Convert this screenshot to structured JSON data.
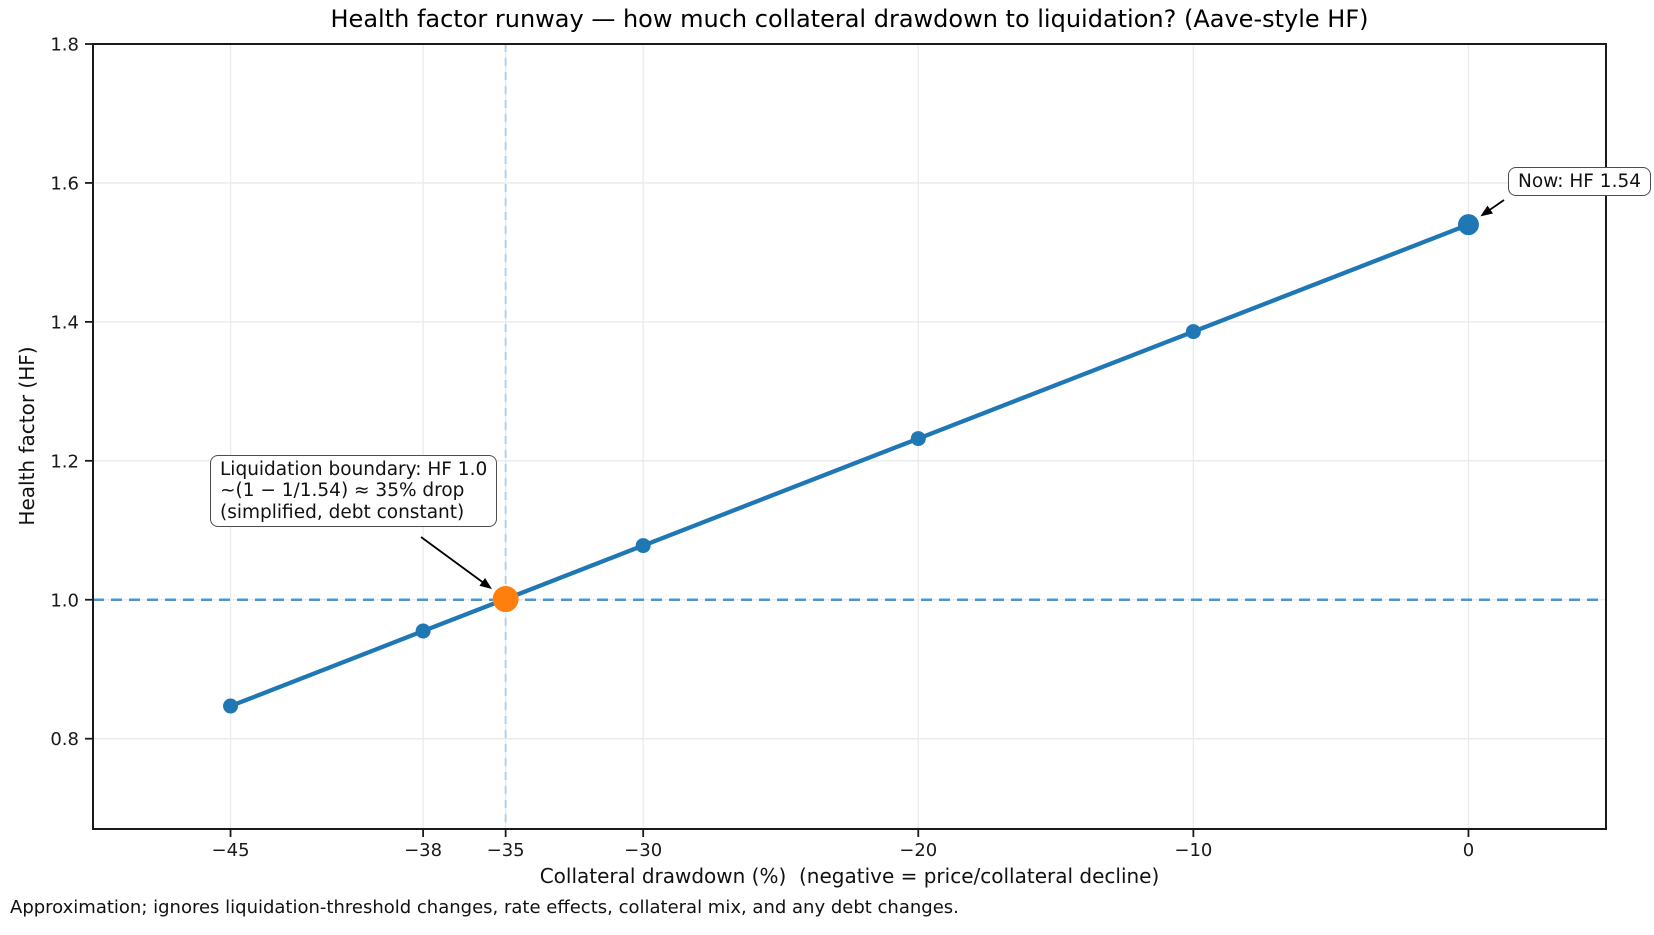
{
  "footer_note": "Approximation; ignores liquidation-threshold changes, rate effects, collateral mix, and any debt changes.",
  "chart_data": {
    "type": "line",
    "title": "Health factor runway — how much collateral drawdown to liquidation? (Aave-style HF)",
    "xlabel": "Collateral drawdown (%)  (negative = price/collateral decline)",
    "ylabel": "Health factor (HF)",
    "x": [
      -45,
      -38,
      -35,
      -30,
      -20,
      -10,
      0
    ],
    "series": [
      {
        "name": "Health factor (HF)",
        "values": [
          0.847,
          0.955,
          1.001,
          1.078,
          1.232,
          1.386,
          1.54
        ]
      }
    ],
    "xtick_labels": [
      "−45",
      "−38",
      "−35",
      "−30",
      "−20",
      "−10",
      "0"
    ],
    "ytick_values": [
      0.8,
      1.0,
      1.2,
      1.4,
      1.6,
      1.8
    ],
    "ytick_labels": [
      "0.8",
      "1.0",
      "1.2",
      "1.4",
      "1.6",
      "1.8"
    ],
    "xlim": [
      -50,
      5
    ],
    "ylim": [
      0.67,
      1.8
    ],
    "grid": true,
    "legend": false,
    "reference_lines": {
      "hline": {
        "y": 1.0,
        "style": "dashed"
      },
      "vline": {
        "x": -35,
        "style": "dashed"
      }
    },
    "points": {
      "now": {
        "x": 0,
        "y": 1.54,
        "size": "large"
      },
      "boundary": {
        "x": -35,
        "y": 1.001,
        "size": "xlarge"
      }
    },
    "annotations": [
      {
        "id": "now",
        "text": "Now: HF 1.54",
        "target": {
          "x": 0,
          "y": 1.54
        }
      },
      {
        "id": "liquidation-boundary",
        "lines": [
          "Liquidation boundary: HF 1.0",
          "~(1 − 1/1.54) ≈ 35% drop",
          "(simplified, debt constant)"
        ],
        "target": {
          "x": -35,
          "y": 1.001
        }
      }
    ],
    "colors": {
      "line": "#1f77b4",
      "marker": "#1f77b4",
      "boundary_marker": "#ff7f0e",
      "hline": "#4f94cc",
      "vline": "#b5d0e8",
      "grid": "#eaeaea",
      "spine": "#1a1a1a",
      "tick_text": "#191919",
      "arrow": "#000000"
    }
  }
}
